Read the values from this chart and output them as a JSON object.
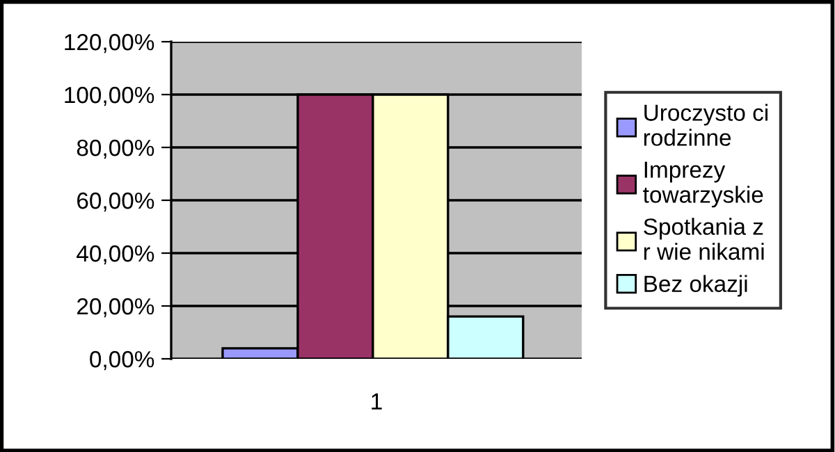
{
  "chart_data": {
    "type": "bar",
    "categories": [
      null,
      null,
      null,
      null
    ],
    "xlabel": "1",
    "series": [
      {
        "name": "Uroczysto ci rodzinne",
        "color": "#9999ff",
        "values": [
          4,
          null,
          null,
          null
        ]
      },
      {
        "name": "Imprezy towarzyskie",
        "color": "#993366",
        "values": [
          null,
          100,
          null,
          null
        ]
      },
      {
        "name": "Spotkania z r wie nikami",
        "color": "#ffffcc",
        "values": [
          null,
          null,
          100,
          null
        ]
      },
      {
        "name": "Bez okazji",
        "color": "#ccffff",
        "values": [
          null,
          null,
          null,
          16
        ]
      }
    ],
    "ylim": [
      0,
      120
    ],
    "yticks": [
      {
        "value": 0,
        "label": "0,00%"
      },
      {
        "value": 20,
        "label": "20,00%"
      },
      {
        "value": 40,
        "label": "40,00%"
      },
      {
        "value": 60,
        "label": "60,00%"
      },
      {
        "value": 80,
        "label": "80,00%"
      },
      {
        "value": 100,
        "label": "100,00%"
      },
      {
        "value": 120,
        "label": "120,00%"
      }
    ],
    "grid": "y",
    "legend": "right"
  }
}
